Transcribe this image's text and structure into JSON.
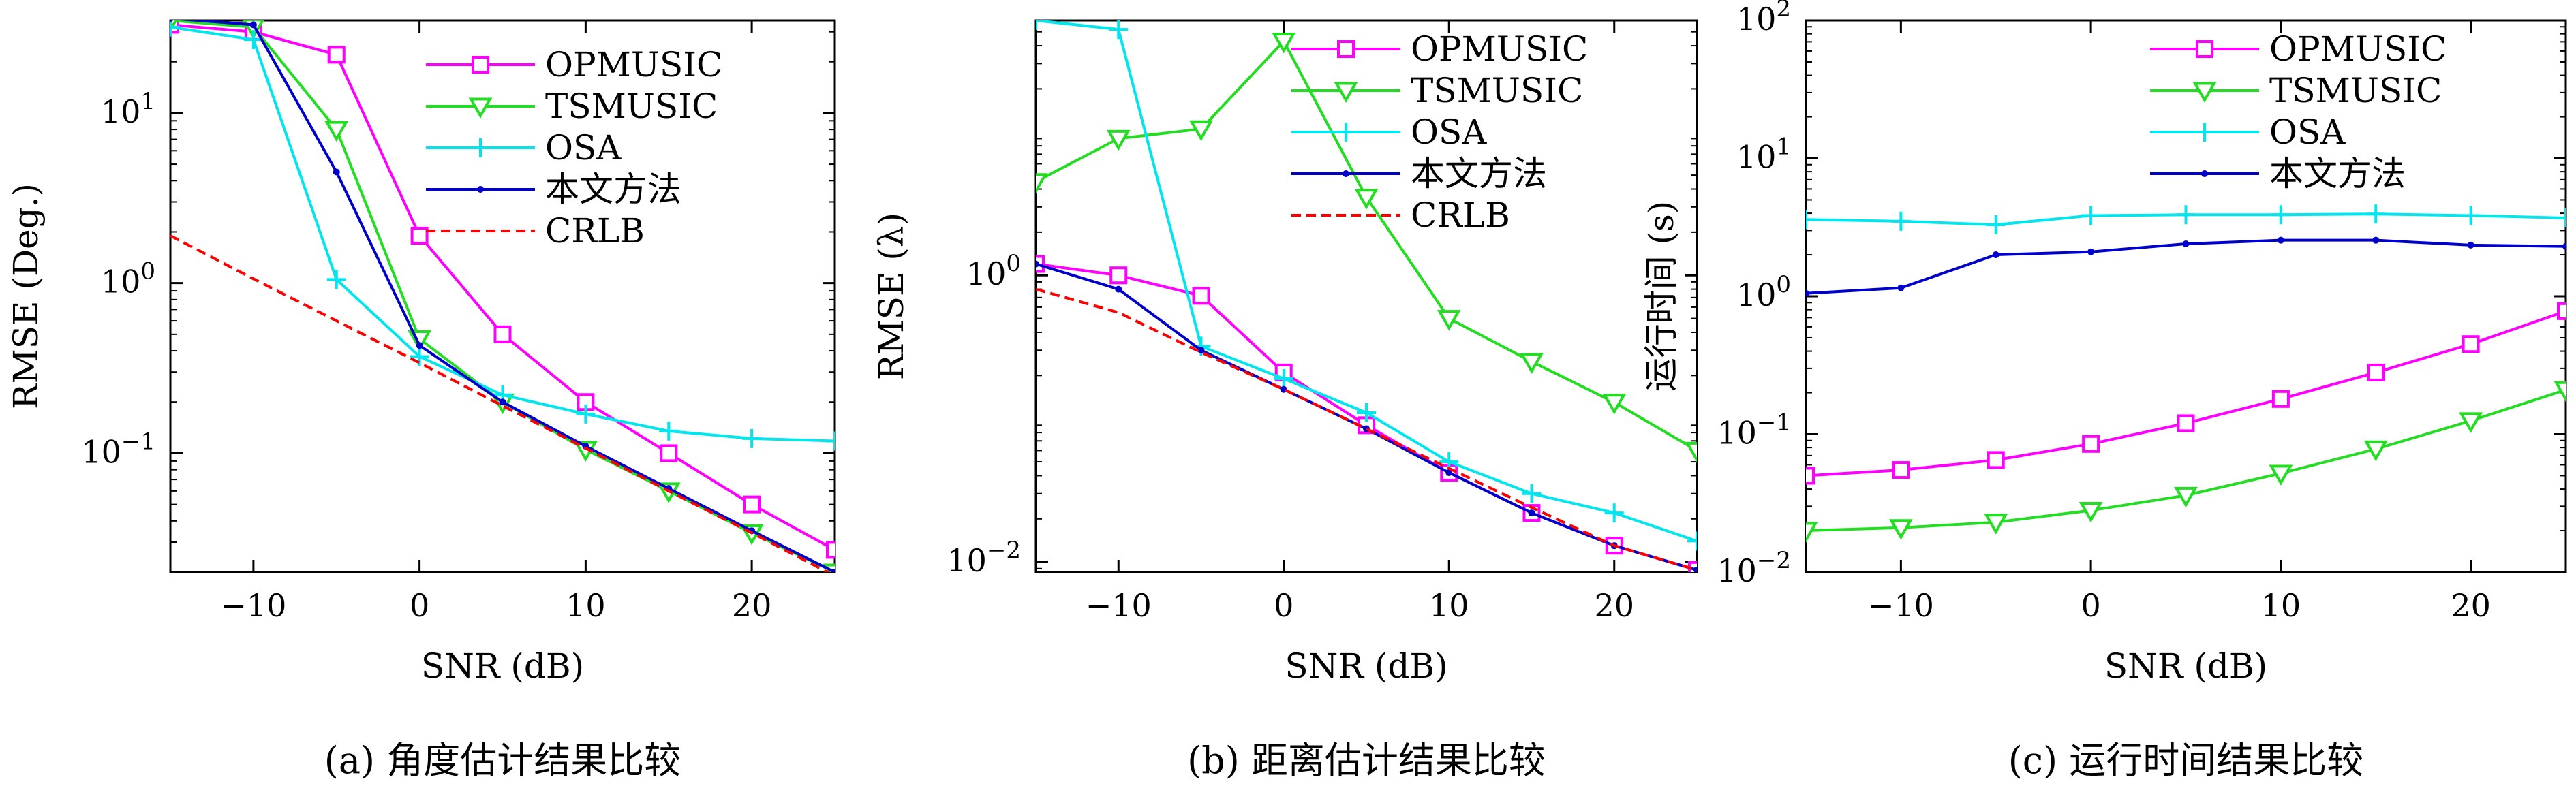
{
  "chart_data": [
    {
      "type": "line",
      "caption": "(a) 角度估计结果比较",
      "xlabel": "SNR (dB)",
      "ylabel": "RMSE (Deg.)",
      "yscale": "log",
      "xlim": [
        -15,
        25
      ],
      "ylim": [
        0.02,
        35
      ],
      "xticks": [
        -10,
        0,
        10,
        20
      ],
      "xtick_labels": [
        "−10",
        "0",
        "10",
        "20"
      ],
      "yticks": [
        {
          "value": 0.1,
          "base": "10",
          "exp": "−1"
        },
        {
          "value": 1,
          "base": "10",
          "exp": "0"
        },
        {
          "value": 10,
          "base": "10",
          "exp": "1"
        }
      ],
      "legend_position": "top-right",
      "x": [
        -15,
        -10,
        -5,
        0,
        5,
        10,
        15,
        20,
        25
      ],
      "series": [
        {
          "name": "OPMUSIC",
          "color": "#ff00ff",
          "marker": "square",
          "dashed": false,
          "values": [
            33,
            30,
            22,
            1.9,
            0.5,
            0.2,
            0.1,
            0.05,
            0.027
          ]
        },
        {
          "name": "TSMUSIC",
          "color": "#22dd22",
          "marker": "triangle-down",
          "dashed": false,
          "values": [
            35,
            32,
            8,
            0.47,
            0.2,
            0.105,
            0.06,
            0.034,
            0.02
          ]
        },
        {
          "name": "OSA",
          "color": "#00e5ee",
          "marker": "plus",
          "dashed": false,
          "values": [
            32,
            27,
            1.05,
            0.37,
            0.22,
            0.17,
            0.135,
            0.122,
            0.118
          ]
        },
        {
          "name": "本文方法",
          "color": "#0000cc",
          "marker": "dot",
          "dashed": false,
          "values": [
            36,
            33,
            4.5,
            0.43,
            0.2,
            0.11,
            0.062,
            0.035,
            0.02
          ]
        },
        {
          "name": "CRLB",
          "color": "#ff0000",
          "marker": "none",
          "dashed": true,
          "values": [
            1.9,
            1.06,
            0.6,
            0.34,
            0.19,
            0.107,
            0.06,
            0.034,
            0.019
          ]
        }
      ]
    },
    {
      "type": "line",
      "caption": "(b) 距离估计结果比较",
      "xlabel": "SNR (dB)",
      "ylabel": "RMSE (λ)",
      "yscale": "log",
      "xlim": [
        -15,
        25
      ],
      "ylim": [
        0.0085,
        60
      ],
      "xticks": [
        -10,
        0,
        10,
        20
      ],
      "xtick_labels": [
        "−10",
        "0",
        "10",
        "20"
      ],
      "yticks": [
        {
          "value": 0.01,
          "base": "10",
          "exp": "−2"
        },
        {
          "value": 1,
          "base": "10",
          "exp": "0"
        }
      ],
      "legend_position": "top-right",
      "x": [
        -15,
        -10,
        -5,
        0,
        5,
        10,
        15,
        20,
        25
      ],
      "series": [
        {
          "name": "OPMUSIC",
          "color": "#ff00ff",
          "marker": "square",
          "dashed": false,
          "values": [
            1.2,
            1.0,
            0.72,
            0.21,
            0.09,
            0.042,
            0.022,
            0.013,
            0.0088
          ]
        },
        {
          "name": "TSMUSIC",
          "color": "#22dd22",
          "marker": "triangle-down",
          "dashed": false,
          "values": [
            4.5,
            9,
            10.5,
            43,
            3.5,
            0.5,
            0.25,
            0.13,
            0.06
          ]
        },
        {
          "name": "OSA",
          "color": "#00e5ee",
          "marker": "plus",
          "dashed": false,
          "values": [
            60,
            52,
            0.32,
            0.19,
            0.11,
            0.05,
            0.03,
            0.022,
            0.014
          ]
        },
        {
          "name": "本文方法",
          "color": "#0000cc",
          "marker": "dot",
          "dashed": false,
          "values": [
            1.2,
            0.8,
            0.3,
            0.16,
            0.085,
            0.042,
            0.022,
            0.013,
            0.0088
          ]
        },
        {
          "name": "CRLB",
          "color": "#ff0000",
          "marker": "none",
          "dashed": true,
          "values": [
            0.8,
            0.55,
            0.29,
            0.16,
            0.085,
            0.045,
            0.024,
            0.013,
            0.0088
          ]
        }
      ]
    },
    {
      "type": "line",
      "caption": "(c) 运行时间结果比较",
      "xlabel": "SNR (dB)",
      "ylabel": "运行时间 (s)",
      "yscale": "log",
      "xlim": [
        -15,
        25
      ],
      "ylim": [
        0.01,
        100
      ],
      "xticks": [
        -10,
        0,
        10,
        20
      ],
      "xtick_labels": [
        "−10",
        "0",
        "10",
        "20"
      ],
      "yticks": [
        {
          "value": 0.01,
          "base": "10",
          "exp": "−2"
        },
        {
          "value": 0.1,
          "base": "10",
          "exp": "−1"
        },
        {
          "value": 1,
          "base": "10",
          "exp": "0"
        },
        {
          "value": 10,
          "base": "10",
          "exp": "1"
        },
        {
          "value": 100,
          "base": "10",
          "exp": "2"
        }
      ],
      "legend_position": "top-right",
      "x": [
        -15,
        -10,
        -5,
        0,
        5,
        10,
        15,
        20,
        25
      ],
      "series": [
        {
          "name": "OPMUSIC",
          "color": "#ff00ff",
          "marker": "square",
          "dashed": false,
          "values": [
            0.05,
            0.055,
            0.065,
            0.085,
            0.12,
            0.18,
            0.28,
            0.45,
            0.78
          ]
        },
        {
          "name": "TSMUSIC",
          "color": "#22dd22",
          "marker": "triangle-down",
          "dashed": false,
          "values": [
            0.02,
            0.021,
            0.023,
            0.028,
            0.036,
            0.052,
            0.078,
            0.125,
            0.21
          ]
        },
        {
          "name": "OSA",
          "color": "#00e5ee",
          "marker": "plus",
          "dashed": false,
          "values": [
            3.6,
            3.5,
            3.3,
            3.85,
            3.9,
            3.9,
            3.95,
            3.85,
            3.7
          ]
        },
        {
          "name": "本文方法",
          "color": "#0000cc",
          "marker": "dot",
          "dashed": false,
          "values": [
            1.05,
            1.15,
            2.0,
            2.1,
            2.4,
            2.55,
            2.55,
            2.35,
            2.3
          ]
        }
      ]
    }
  ]
}
